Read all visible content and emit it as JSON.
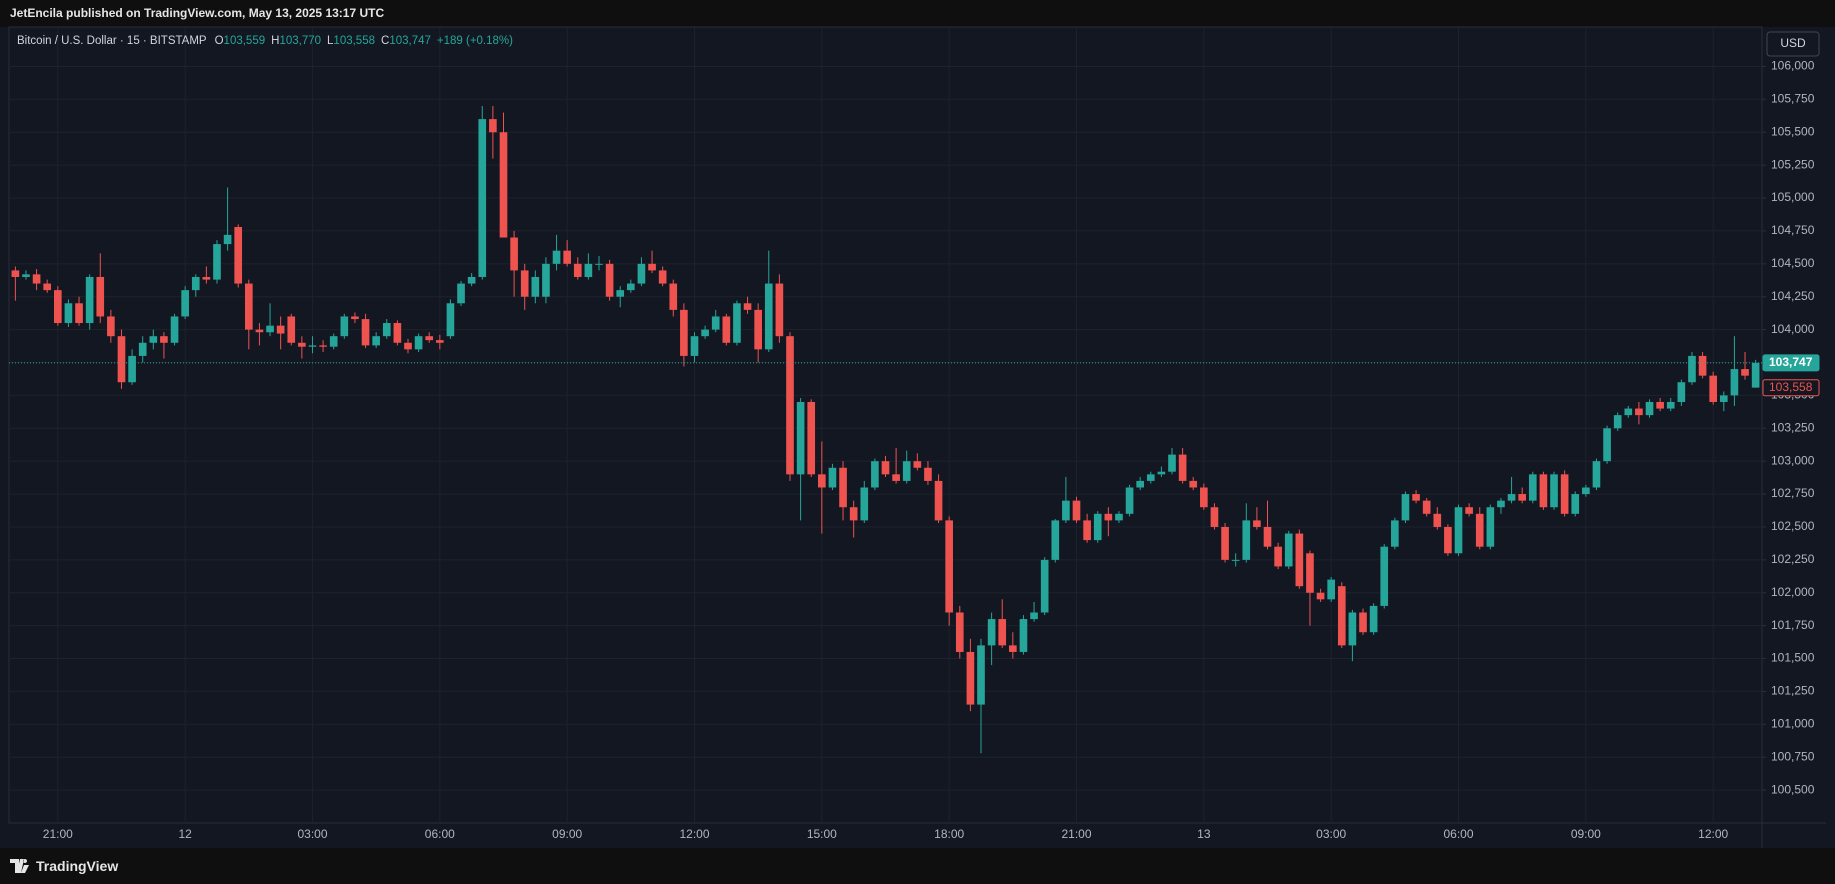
{
  "header": {
    "publisher": "JetEncila published on TradingView.com, May 13, 2025 13:17 UTC"
  },
  "footer": {
    "brand": "TradingView"
  },
  "chart_data": {
    "type": "candlestick",
    "symbol": "Bitcoin / U.S. Dollar · 15 · BITSTAMP",
    "legend": [
      {
        "key": "O",
        "value": "103,559"
      },
      {
        "key": "H",
        "value": "103,770"
      },
      {
        "key": "L",
        "value": "103,558"
      },
      {
        "key": "C",
        "value": "103,747"
      }
    ],
    "change": "+189 (+0.18%)",
    "currency": "USD",
    "up_color": "#26a69a",
    "down_color": "#ef5350",
    "grid": true,
    "xlim": [
      -0.6,
      164.6
    ],
    "xticks": [
      {
        "value": 4,
        "label": "21:00"
      },
      {
        "value": 16,
        "label": "12"
      },
      {
        "value": 28,
        "label": "03:00"
      },
      {
        "value": 40,
        "label": "06:00"
      },
      {
        "value": 52,
        "label": "09:00"
      },
      {
        "value": 64,
        "label": "12:00"
      },
      {
        "value": 76,
        "label": "15:00"
      },
      {
        "value": 88,
        "label": "18:00"
      },
      {
        "value": 100,
        "label": "21:00"
      },
      {
        "value": 112,
        "label": "13"
      },
      {
        "value": 124,
        "label": "03:00"
      },
      {
        "value": 136,
        "label": "06:00"
      },
      {
        "value": 148,
        "label": "09:00"
      },
      {
        "value": 160,
        "label": "12:00"
      }
    ],
    "ylim": [
      100250,
      106300
    ],
    "yticks": [
      {
        "value": 100500,
        "label": "100,500"
      },
      {
        "value": 100750,
        "label": "100,750"
      },
      {
        "value": 101000,
        "label": "101,000"
      },
      {
        "value": 101250,
        "label": "101,250"
      },
      {
        "value": 101500,
        "label": "101,500"
      },
      {
        "value": 101750,
        "label": "101,750"
      },
      {
        "value": 102000,
        "label": "102,000"
      },
      {
        "value": 102250,
        "label": "102,250"
      },
      {
        "value": 102500,
        "label": "102,500"
      },
      {
        "value": 102750,
        "label": "102,750"
      },
      {
        "value": 103000,
        "label": "103,000"
      },
      {
        "value": 103250,
        "label": "103,250"
      },
      {
        "value": 103500,
        "label": "103,500"
      },
      {
        "value": 103750,
        "label": "103,750"
      },
      {
        "value": 104000,
        "label": "104,000"
      },
      {
        "value": 104250,
        "label": "104,250"
      },
      {
        "value": 104500,
        "label": "104,500"
      },
      {
        "value": 104750,
        "label": "104,750"
      },
      {
        "value": 105000,
        "label": "105,000"
      },
      {
        "value": 105250,
        "label": "105,250"
      },
      {
        "value": 105500,
        "label": "105,500"
      },
      {
        "value": 105750,
        "label": "105,750"
      },
      {
        "value": 106000,
        "label": "106,000"
      }
    ],
    "price_labels": [
      {
        "value": 103747,
        "label": "103,747",
        "color": "#26a69a"
      },
      {
        "value": 103558,
        "label": "103,558",
        "color": "#ef5350"
      }
    ],
    "ohlc": [
      [
        104450,
        104480,
        104220,
        104400
      ],
      [
        104400,
        104450,
        104380,
        104420
      ],
      [
        104420,
        104460,
        104300,
        104350
      ],
      [
        104350,
        104380,
        104280,
        104300
      ],
      [
        104300,
        104330,
        104030,
        104050
      ],
      [
        104050,
        104230,
        104020,
        104200
      ],
      [
        104200,
        104250,
        104030,
        104050
      ],
      [
        104050,
        104420,
        104000,
        104400
      ],
      [
        104400,
        104580,
        104050,
        104100
      ],
      [
        104100,
        104150,
        103900,
        103950
      ],
      [
        103950,
        104000,
        103550,
        103600
      ],
      [
        103600,
        103850,
        103580,
        103800
      ],
      [
        103800,
        103950,
        103750,
        103900
      ],
      [
        103900,
        104000,
        103850,
        103950
      ],
      [
        103950,
        103980,
        103780,
        103900
      ],
      [
        103900,
        104120,
        103880,
        104100
      ],
      [
        104100,
        104330,
        104080,
        104300
      ],
      [
        104300,
        104420,
        104250,
        104400
      ],
      [
        104400,
        104480,
        104350,
        104380
      ],
      [
        104380,
        104680,
        104350,
        104650
      ],
      [
        104650,
        105080,
        104600,
        104720
      ],
      [
        104780,
        104800,
        104320,
        104350
      ],
      [
        104350,
        104380,
        103850,
        104000
      ],
      [
        104000,
        104050,
        103880,
        103980
      ],
      [
        103980,
        104200,
        103950,
        104030
      ],
      [
        104030,
        104100,
        103850,
        103970
      ],
      [
        104100,
        104120,
        103880,
        103900
      ],
      [
        103900,
        103950,
        103780,
        103870
      ],
      [
        103870,
        103950,
        103820,
        103880
      ],
      [
        103880,
        103920,
        103830,
        103870
      ],
      [
        103870,
        103970,
        103850,
        103950
      ],
      [
        103950,
        104120,
        103930,
        104100
      ],
      [
        104100,
        104130,
        104050,
        104080
      ],
      [
        104080,
        104120,
        103860,
        103880
      ],
      [
        103880,
        103980,
        103860,
        103950
      ],
      [
        103950,
        104080,
        103930,
        104050
      ],
      [
        104050,
        104070,
        103880,
        103900
      ],
      [
        103900,
        103930,
        103820,
        103850
      ],
      [
        103850,
        103970,
        103830,
        103950
      ],
      [
        103950,
        103980,
        103900,
        103920
      ],
      [
        103920,
        103960,
        103850,
        103900
      ],
      [
        103950,
        104230,
        103930,
        104200
      ],
      [
        104200,
        104370,
        104180,
        104350
      ],
      [
        104350,
        104430,
        104330,
        104400
      ],
      [
        104400,
        105700,
        104380,
        105600
      ],
      [
        105600,
        105700,
        105300,
        105500
      ],
      [
        105500,
        105650,
        104700,
        104700
      ],
      [
        104700,
        104750,
        104250,
        104450
      ],
      [
        104450,
        104500,
        104150,
        104250
      ],
      [
        104250,
        104450,
        104200,
        104400
      ],
      [
        104250,
        104550,
        104200,
        104500
      ],
      [
        104500,
        104720,
        104450,
        104600
      ],
      [
        104600,
        104680,
        104480,
        104500
      ],
      [
        104500,
        104550,
        104380,
        104400
      ],
      [
        104400,
        104580,
        104380,
        104500
      ],
      [
        104500,
        104560,
        104450,
        104500
      ],
      [
        104500,
        104530,
        104220,
        104250
      ],
      [
        104250,
        104330,
        104170,
        104300
      ],
      [
        104300,
        104380,
        104280,
        104350
      ],
      [
        104350,
        104550,
        104330,
        104500
      ],
      [
        104500,
        104600,
        104430,
        104450
      ],
      [
        104450,
        104480,
        104330,
        104350
      ],
      [
        104350,
        104380,
        104100,
        104150
      ],
      [
        104150,
        104200,
        103720,
        103800
      ],
      [
        103800,
        103980,
        103750,
        103950
      ],
      [
        103950,
        104030,
        103930,
        104000
      ],
      [
        104000,
        104150,
        103980,
        104100
      ],
      [
        104100,
        104120,
        103880,
        103900
      ],
      [
        103900,
        104220,
        103880,
        104200
      ],
      [
        104200,
        104250,
        104120,
        104150
      ],
      [
        104150,
        104200,
        103750,
        103850
      ],
      [
        103850,
        104600,
        103830,
        104350
      ],
      [
        104350,
        104420,
        103900,
        103950
      ],
      [
        103950,
        103980,
        102850,
        102900
      ],
      [
        102900,
        103480,
        102550,
        103450
      ],
      [
        103450,
        103470,
        102880,
        102900
      ],
      [
        102900,
        103150,
        102450,
        102800
      ],
      [
        102800,
        102980,
        102780,
        102950
      ],
      [
        102950,
        103000,
        102550,
        102650
      ],
      [
        102650,
        102700,
        102420,
        102550
      ],
      [
        102550,
        102850,
        102530,
        102800
      ],
      [
        102800,
        103020,
        102780,
        103000
      ],
      [
        103000,
        103040,
        102880,
        102900
      ],
      [
        102900,
        103100,
        102830,
        102850
      ],
      [
        102850,
        103080,
        102830,
        103000
      ],
      [
        103000,
        103060,
        102930,
        102950
      ],
      [
        102950,
        103000,
        102820,
        102850
      ],
      [
        102850,
        102900,
        102530,
        102550
      ],
      [
        102550,
        102580,
        101750,
        101850
      ],
      [
        101850,
        101900,
        101500,
        101550
      ],
      [
        101550,
        101650,
        101100,
        101150
      ],
      [
        101150,
        101650,
        100780,
        101600
      ],
      [
        101600,
        101850,
        101450,
        101800
      ],
      [
        101800,
        101950,
        101580,
        101600
      ],
      [
        101600,
        101700,
        101500,
        101550
      ],
      [
        101550,
        101830,
        101530,
        101800
      ],
      [
        101800,
        101930,
        101780,
        101850
      ],
      [
        101850,
        102270,
        101830,
        102250
      ],
      [
        102250,
        102560,
        102230,
        102550
      ],
      [
        102550,
        102880,
        102530,
        102700
      ],
      [
        102700,
        102730,
        102530,
        102550
      ],
      [
        102550,
        102600,
        102380,
        102400
      ],
      [
        102400,
        102620,
        102380,
        102600
      ],
      [
        102600,
        102650,
        102430,
        102550
      ],
      [
        102550,
        102620,
        102530,
        102600
      ],
      [
        102600,
        102820,
        102580,
        102800
      ],
      [
        102800,
        102880,
        102780,
        102850
      ],
      [
        102850,
        102920,
        102830,
        102900
      ],
      [
        102900,
        102960,
        102880,
        102920
      ],
      [
        102920,
        103100,
        102900,
        103050
      ],
      [
        103050,
        103100,
        102830,
        102850
      ],
      [
        102850,
        102880,
        102780,
        102800
      ],
      [
        102800,
        102830,
        102630,
        102650
      ],
      [
        102650,
        102680,
        102480,
        102500
      ],
      [
        102500,
        102530,
        102230,
        102250
      ],
      [
        102250,
        102300,
        102200,
        102250
      ],
      [
        102250,
        102680,
        102230,
        102550
      ],
      [
        102550,
        102650,
        102480,
        102500
      ],
      [
        102500,
        102700,
        102330,
        102350
      ],
      [
        102350,
        102380,
        102180,
        102200
      ],
      [
        102200,
        102470,
        102180,
        102450
      ],
      [
        102450,
        102480,
        102030,
        102050
      ],
      [
        102300,
        102320,
        101750,
        102000
      ],
      [
        102000,
        102030,
        101930,
        101950
      ],
      [
        101950,
        102120,
        101930,
        102100
      ],
      [
        102050,
        102080,
        101580,
        101600
      ],
      [
        101600,
        101870,
        101480,
        101850
      ],
      [
        101850,
        101880,
        101680,
        101700
      ],
      [
        101700,
        101920,
        101680,
        101900
      ],
      [
        101900,
        102370,
        101880,
        102350
      ],
      [
        102350,
        102570,
        102330,
        102550
      ],
      [
        102550,
        102770,
        102530,
        102750
      ],
      [
        102750,
        102780,
        102680,
        102700
      ],
      [
        102700,
        102720,
        102580,
        102600
      ],
      [
        102600,
        102650,
        102480,
        102500
      ],
      [
        102500,
        102520,
        102280,
        102300
      ],
      [
        102300,
        102670,
        102280,
        102650
      ],
      [
        102650,
        102680,
        102580,
        102600
      ],
      [
        102600,
        102650,
        102330,
        102350
      ],
      [
        102350,
        102670,
        102330,
        102650
      ],
      [
        102650,
        102720,
        102600,
        102700
      ],
      [
        102700,
        102880,
        102680,
        102750
      ],
      [
        102750,
        102800,
        102680,
        102700
      ],
      [
        102700,
        102920,
        102680,
        102900
      ],
      [
        102900,
        102920,
        102630,
        102650
      ],
      [
        102650,
        102920,
        102630,
        102900
      ],
      [
        102900,
        102930,
        102580,
        102600
      ],
      [
        102600,
        102770,
        102580,
        102750
      ],
      [
        102750,
        102820,
        102730,
        102800
      ],
      [
        102800,
        103020,
        102780,
        103000
      ],
      [
        103000,
        103270,
        102980,
        103250
      ],
      [
        103250,
        103370,
        103230,
        103350
      ],
      [
        103350,
        103420,
        103330,
        103400
      ],
      [
        103400,
        103450,
        103280,
        103350
      ],
      [
        103350,
        103470,
        103330,
        103450
      ],
      [
        103450,
        103480,
        103380,
        103400
      ],
      [
        103400,
        103480,
        103380,
        103450
      ],
      [
        103450,
        103620,
        103420,
        103600
      ],
      [
        103600,
        103830,
        103580,
        103800
      ],
      [
        103800,
        103830,
        103630,
        103650
      ],
      [
        103650,
        103680,
        103430,
        103450
      ],
      [
        103450,
        103530,
        103380,
        103500
      ],
      [
        103500,
        103950,
        103420,
        103700
      ],
      [
        103700,
        103830,
        103620,
        103650
      ],
      [
        103559,
        103770,
        103558,
        103747
      ]
    ]
  }
}
